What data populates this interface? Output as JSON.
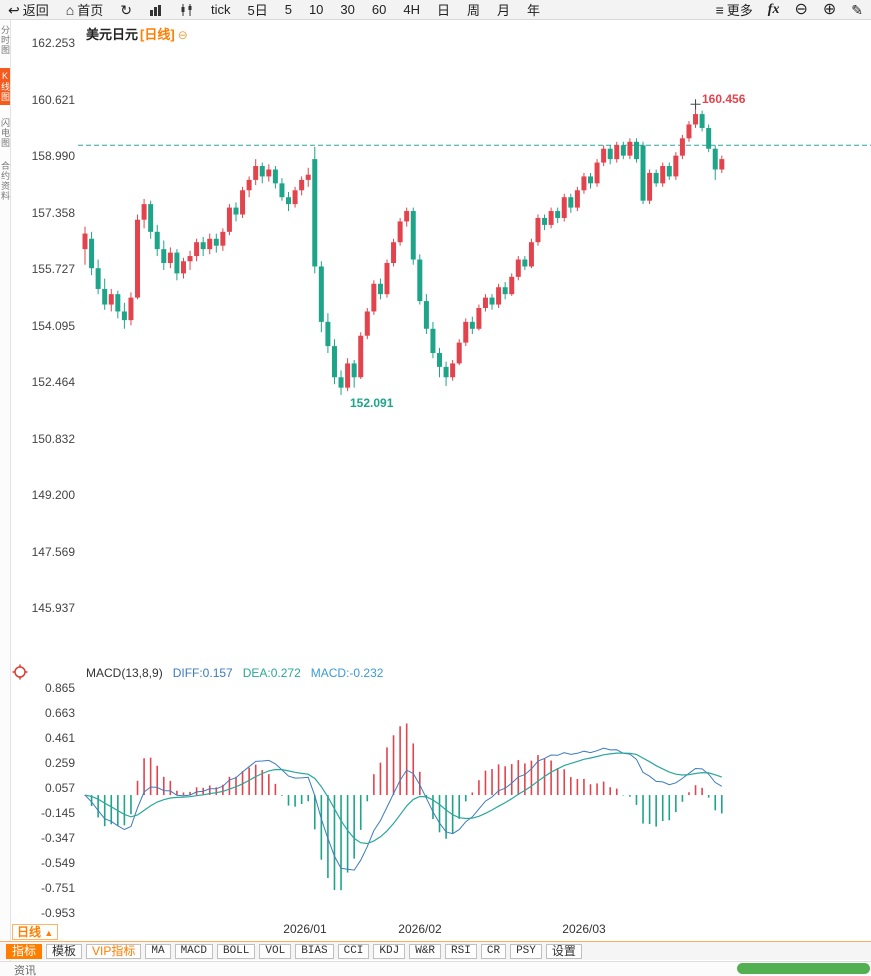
{
  "toolbar": {
    "back_label": "返回",
    "home_label": "首页",
    "periods": [
      "tick",
      "5日",
      "5",
      "10",
      "30",
      "60",
      "4H",
      "日",
      "周",
      "月",
      "年"
    ],
    "more_label": "更多",
    "fx_label": "fx"
  },
  "side_tabs": [
    {
      "label": "分时图",
      "active": false
    },
    {
      "label": "K线图",
      "active": true
    },
    {
      "label": "闪电图",
      "active": false
    },
    {
      "label": "合约资料",
      "active": false
    }
  ],
  "chart_header": {
    "title": "美元日元",
    "period_tag": "[日线]"
  },
  "macd_panel": {
    "name": "MACD(13,8,9)",
    "diff_label": "DIFF:0.157",
    "dea_label": "DEA:0.272",
    "macd_label": "MACD:-0.232"
  },
  "bottom_bar": {
    "period_selector": "日线",
    "dropdown_arrow": "▲",
    "tabs": [
      {
        "label": "指标",
        "style": "cn active"
      },
      {
        "label": "模板",
        "style": "cn"
      },
      {
        "label": "VIP指标",
        "style": "cn vip"
      },
      {
        "label": "MA"
      },
      {
        "label": "MACD"
      },
      {
        "label": "BOLL"
      },
      {
        "label": "VOL"
      },
      {
        "label": "BIAS"
      },
      {
        "label": "CCI"
      },
      {
        "label": "KDJ"
      },
      {
        "label": "W&R"
      },
      {
        "label": "RSI"
      },
      {
        "label": "CR"
      },
      {
        "label": "PSY"
      },
      {
        "label": "设置",
        "style": "cn"
      }
    ],
    "corner_text": "资讯"
  },
  "colors": {
    "up": "#e2434d",
    "down": "#1ea489",
    "accent": "#ff7e00",
    "diff_line": "#3b7bbf",
    "dea_line": "#2aa79b",
    "dashed": "#2aa79b",
    "scroll_thumb": "#52b052"
  },
  "chart_data": {
    "type": "candlestick",
    "symbol": "美元日元",
    "period": "日线",
    "price_ticks": [
      "162.253",
      "160.621",
      "158.990",
      "157.358",
      "155.727",
      "154.095",
      "152.464",
      "150.832",
      "149.200",
      "147.569",
      "145.937"
    ],
    "macd_ticks": [
      "0.865",
      "0.663",
      "0.461",
      "0.259",
      "0.057",
      "-0.145",
      "-0.347",
      "-0.549",
      "-0.751",
      "-0.953"
    ],
    "x_ticks": [
      "2026/01",
      "2026/02",
      "2026/03"
    ],
    "high_annotation": "160.456",
    "low_annotation": "152.091",
    "current_price_line": 159.3,
    "macd_params": [
      13,
      8,
      9
    ],
    "macd_values": {
      "diff": 0.157,
      "dea": 0.272,
      "macd": -0.232
    },
    "candles": [
      [
        156.3,
        156.95,
        155.85,
        156.75
      ],
      [
        156.6,
        156.8,
        155.55,
        155.75
      ],
      [
        155.75,
        156.0,
        155.0,
        155.15
      ],
      [
        155.15,
        155.45,
        154.55,
        154.7
      ],
      [
        154.7,
        155.15,
        154.5,
        155.0
      ],
      [
        155.0,
        155.1,
        154.3,
        154.5
      ],
      [
        154.5,
        154.75,
        154.0,
        154.25
      ],
      [
        154.25,
        155.05,
        154.1,
        154.9
      ],
      [
        154.9,
        157.3,
        154.85,
        157.15
      ],
      [
        157.15,
        157.75,
        156.9,
        157.6
      ],
      [
        157.6,
        157.7,
        156.6,
        156.8
      ],
      [
        156.8,
        157.0,
        156.1,
        156.3
      ],
      [
        156.3,
        156.55,
        155.7,
        155.9
      ],
      [
        155.9,
        156.35,
        155.75,
        156.2
      ],
      [
        156.2,
        156.3,
        155.4,
        155.6
      ],
      [
        155.6,
        156.05,
        155.45,
        155.95
      ],
      [
        155.95,
        156.25,
        155.7,
        156.1
      ],
      [
        156.1,
        156.6,
        155.95,
        156.5
      ],
      [
        156.5,
        156.65,
        156.1,
        156.3
      ],
      [
        156.3,
        156.75,
        156.15,
        156.6
      ],
      [
        156.6,
        156.75,
        156.2,
        156.4
      ],
      [
        156.4,
        156.9,
        156.25,
        156.8
      ],
      [
        156.8,
        157.6,
        156.7,
        157.5
      ],
      [
        157.5,
        157.65,
        157.1,
        157.3
      ],
      [
        157.3,
        158.1,
        157.2,
        158.0
      ],
      [
        158.0,
        158.4,
        157.8,
        158.3
      ],
      [
        158.3,
        158.9,
        158.15,
        158.7
      ],
      [
        158.7,
        158.8,
        158.2,
        158.4
      ],
      [
        158.4,
        158.75,
        158.25,
        158.6
      ],
      [
        158.6,
        158.7,
        158.05,
        158.2
      ],
      [
        158.2,
        158.35,
        157.7,
        157.8
      ],
      [
        157.8,
        157.95,
        157.4,
        157.6
      ],
      [
        157.6,
        158.1,
        157.5,
        158.0
      ],
      [
        158.0,
        158.4,
        157.85,
        158.3
      ],
      [
        158.3,
        158.65,
        158.1,
        158.45
      ],
      [
        158.9,
        159.25,
        155.6,
        155.8
      ],
      [
        155.8,
        155.95,
        153.9,
        154.2
      ],
      [
        154.2,
        154.45,
        153.3,
        153.5
      ],
      [
        153.5,
        153.7,
        152.4,
        152.6
      ],
      [
        152.6,
        152.8,
        152.091,
        152.3
      ],
      [
        152.3,
        153.15,
        152.2,
        153.0
      ],
      [
        153.0,
        153.1,
        152.3,
        152.6
      ],
      [
        152.6,
        153.9,
        152.55,
        153.8
      ],
      [
        153.8,
        154.6,
        153.7,
        154.5
      ],
      [
        154.5,
        155.4,
        154.4,
        155.3
      ],
      [
        155.3,
        155.45,
        154.85,
        155.0
      ],
      [
        155.0,
        156.0,
        154.9,
        155.9
      ],
      [
        155.9,
        156.6,
        155.8,
        156.5
      ],
      [
        156.5,
        157.2,
        156.4,
        157.1
      ],
      [
        157.1,
        157.5,
        156.95,
        157.4
      ],
      [
        157.4,
        157.5,
        155.85,
        156.0
      ],
      [
        156.0,
        156.15,
        154.7,
        154.8
      ],
      [
        154.8,
        155.0,
        153.85,
        154.0
      ],
      [
        154.0,
        154.2,
        153.15,
        153.3
      ],
      [
        153.3,
        153.45,
        152.6,
        152.9
      ],
      [
        152.9,
        153.05,
        152.35,
        152.6
      ],
      [
        152.6,
        153.1,
        152.5,
        153.0
      ],
      [
        153.0,
        153.7,
        152.95,
        153.6
      ],
      [
        153.6,
        154.3,
        153.5,
        154.2
      ],
      [
        154.2,
        154.35,
        153.85,
        154.0
      ],
      [
        154.0,
        154.7,
        153.95,
        154.6
      ],
      [
        154.6,
        155.0,
        154.5,
        154.9
      ],
      [
        154.9,
        155.0,
        154.55,
        154.7
      ],
      [
        154.7,
        155.3,
        154.6,
        155.2
      ],
      [
        155.2,
        155.35,
        154.85,
        155.0
      ],
      [
        155.0,
        155.6,
        154.95,
        155.5
      ],
      [
        155.5,
        156.1,
        155.4,
        156.0
      ],
      [
        156.0,
        156.1,
        155.7,
        155.8
      ],
      [
        155.8,
        156.6,
        155.75,
        156.5
      ],
      [
        156.5,
        157.3,
        156.4,
        157.2
      ],
      [
        157.2,
        157.3,
        156.85,
        157.0
      ],
      [
        157.0,
        157.5,
        156.9,
        157.4
      ],
      [
        157.4,
        157.5,
        157.05,
        157.2
      ],
      [
        157.2,
        157.9,
        157.1,
        157.8
      ],
      [
        157.8,
        157.9,
        157.35,
        157.5
      ],
      [
        157.5,
        158.1,
        157.4,
        158.0
      ],
      [
        158.0,
        158.5,
        157.9,
        158.4
      ],
      [
        158.4,
        158.5,
        158.05,
        158.2
      ],
      [
        158.2,
        158.9,
        158.1,
        158.8
      ],
      [
        158.8,
        159.3,
        158.7,
        159.2
      ],
      [
        159.2,
        159.3,
        158.75,
        158.9
      ],
      [
        158.9,
        159.4,
        158.8,
        159.3
      ],
      [
        159.3,
        159.4,
        158.9,
        159.0
      ],
      [
        159.0,
        159.5,
        158.9,
        159.4
      ],
      [
        159.4,
        159.5,
        158.8,
        158.9
      ],
      [
        159.3,
        159.4,
        157.6,
        157.7
      ],
      [
        157.7,
        158.6,
        157.6,
        158.5
      ],
      [
        158.5,
        158.6,
        158.1,
        158.2
      ],
      [
        158.2,
        158.8,
        158.1,
        158.7
      ],
      [
        158.7,
        158.8,
        158.3,
        158.4
      ],
      [
        158.4,
        159.1,
        158.3,
        159.0
      ],
      [
        159.0,
        159.6,
        158.9,
        159.5
      ],
      [
        159.5,
        160.0,
        159.4,
        159.9
      ],
      [
        159.9,
        160.456,
        159.8,
        160.2
      ],
      [
        160.2,
        160.3,
        159.7,
        159.8
      ],
      [
        159.8,
        159.9,
        159.1,
        159.2
      ],
      [
        159.2,
        159.3,
        158.3,
        158.6
      ],
      [
        158.6,
        159.0,
        158.5,
        158.9
      ]
    ]
  }
}
